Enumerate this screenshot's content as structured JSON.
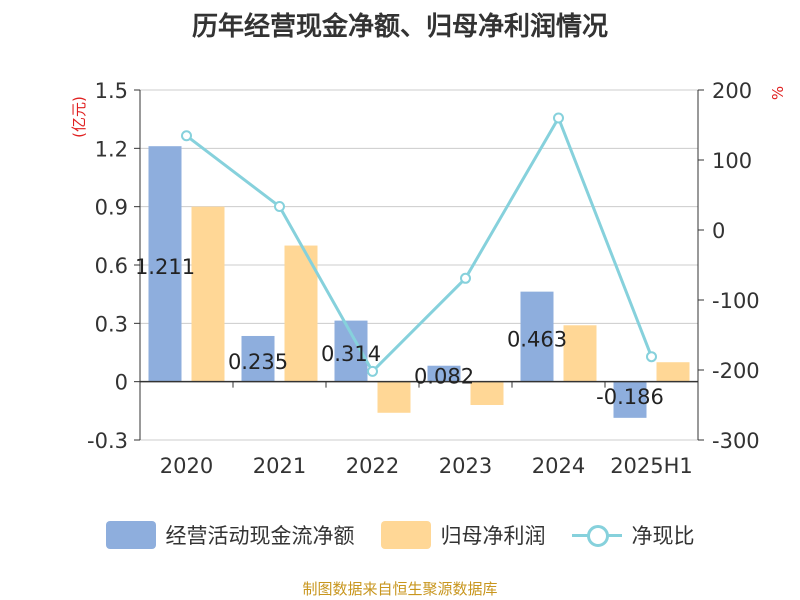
{
  "title": "历年经营现金净额、归母净利润情况",
  "source": "制图数据来自恒生聚源数据库",
  "colors": {
    "cash": "#8eaedd",
    "profit": "#ffd796",
    "ratio": "#86d1dc",
    "left_unit": "#e02020",
    "right_unit": "#e02020",
    "grid": "#cccccc",
    "axis": "#333333",
    "text": "#333333"
  },
  "chart_data": {
    "type": "bar",
    "categories": [
      "2020",
      "2021",
      "2022",
      "2023",
      "2024",
      "2025H1"
    ],
    "y_left": {
      "unit": "(亿元)",
      "min": -0.3,
      "max": 1.5,
      "ticks": [
        "-0.3",
        "0",
        "0.3",
        "0.6",
        "0.9",
        "1.2",
        "1.5"
      ]
    },
    "y_right": {
      "unit": "%",
      "min": -300,
      "max": 200,
      "ticks": [
        "-300",
        "-200",
        "-100",
        "0",
        "100",
        "200"
      ]
    },
    "series": [
      {
        "name": "经营活动现金流净额",
        "type": "bar",
        "axis": "left",
        "values": [
          1.211,
          0.235,
          0.314,
          0.082,
          0.463,
          -0.186
        ],
        "labels": [
          "1.211",
          "0.235",
          "0.314",
          "0.082",
          "0.463",
          "-0.186"
        ]
      },
      {
        "name": "归母净利润",
        "type": "bar",
        "axis": "left",
        "values": [
          0.9,
          0.7,
          -0.16,
          -0.12,
          0.29,
          0.1
        ]
      },
      {
        "name": "净现比",
        "type": "line",
        "axis": "right",
        "values": [
          134.6,
          33.6,
          -202,
          -69,
          160,
          -181
        ]
      }
    ],
    "grid": true,
    "legend_position": "bottom"
  }
}
